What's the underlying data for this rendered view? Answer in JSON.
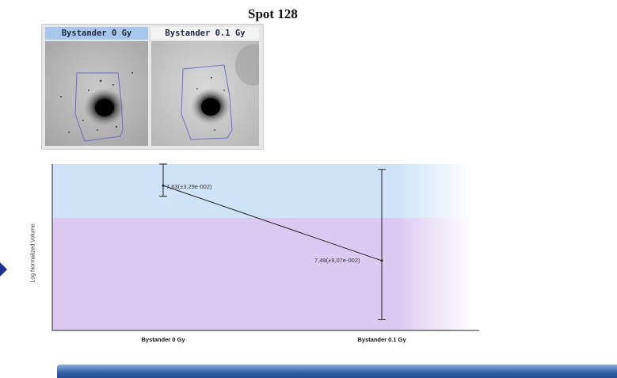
{
  "title": "Spot 128",
  "gel_panels": [
    {
      "label": "Bystander 0 Gy"
    },
    {
      "label": "Bystander 0.1 Gy"
    }
  ],
  "chart_data": {
    "type": "line",
    "categories": [
      "Bystander 0 Gy",
      "Bystander 0.1 Gy"
    ],
    "series": [
      {
        "values": [
          7.63,
          7.49
        ],
        "point_labels": [
          "7,63(±3,29e-002)",
          "7,49(±9,07e-002)"
        ],
        "error_low": [
          7.61,
          7.38
        ],
        "error_high": [
          7.67,
          7.66
        ]
      }
    ],
    "ylabel": "Log Normalized Volume",
    "xlabel": "",
    "ylim": [
      7.36,
      7.67
    ],
    "grid": false,
    "background_bands": [
      {
        "from": 7.57,
        "to": 7.67,
        "color": "#cfe3f8"
      },
      {
        "from": 7.36,
        "to": 7.57,
        "color": "#dcc9f2"
      }
    ]
  }
}
